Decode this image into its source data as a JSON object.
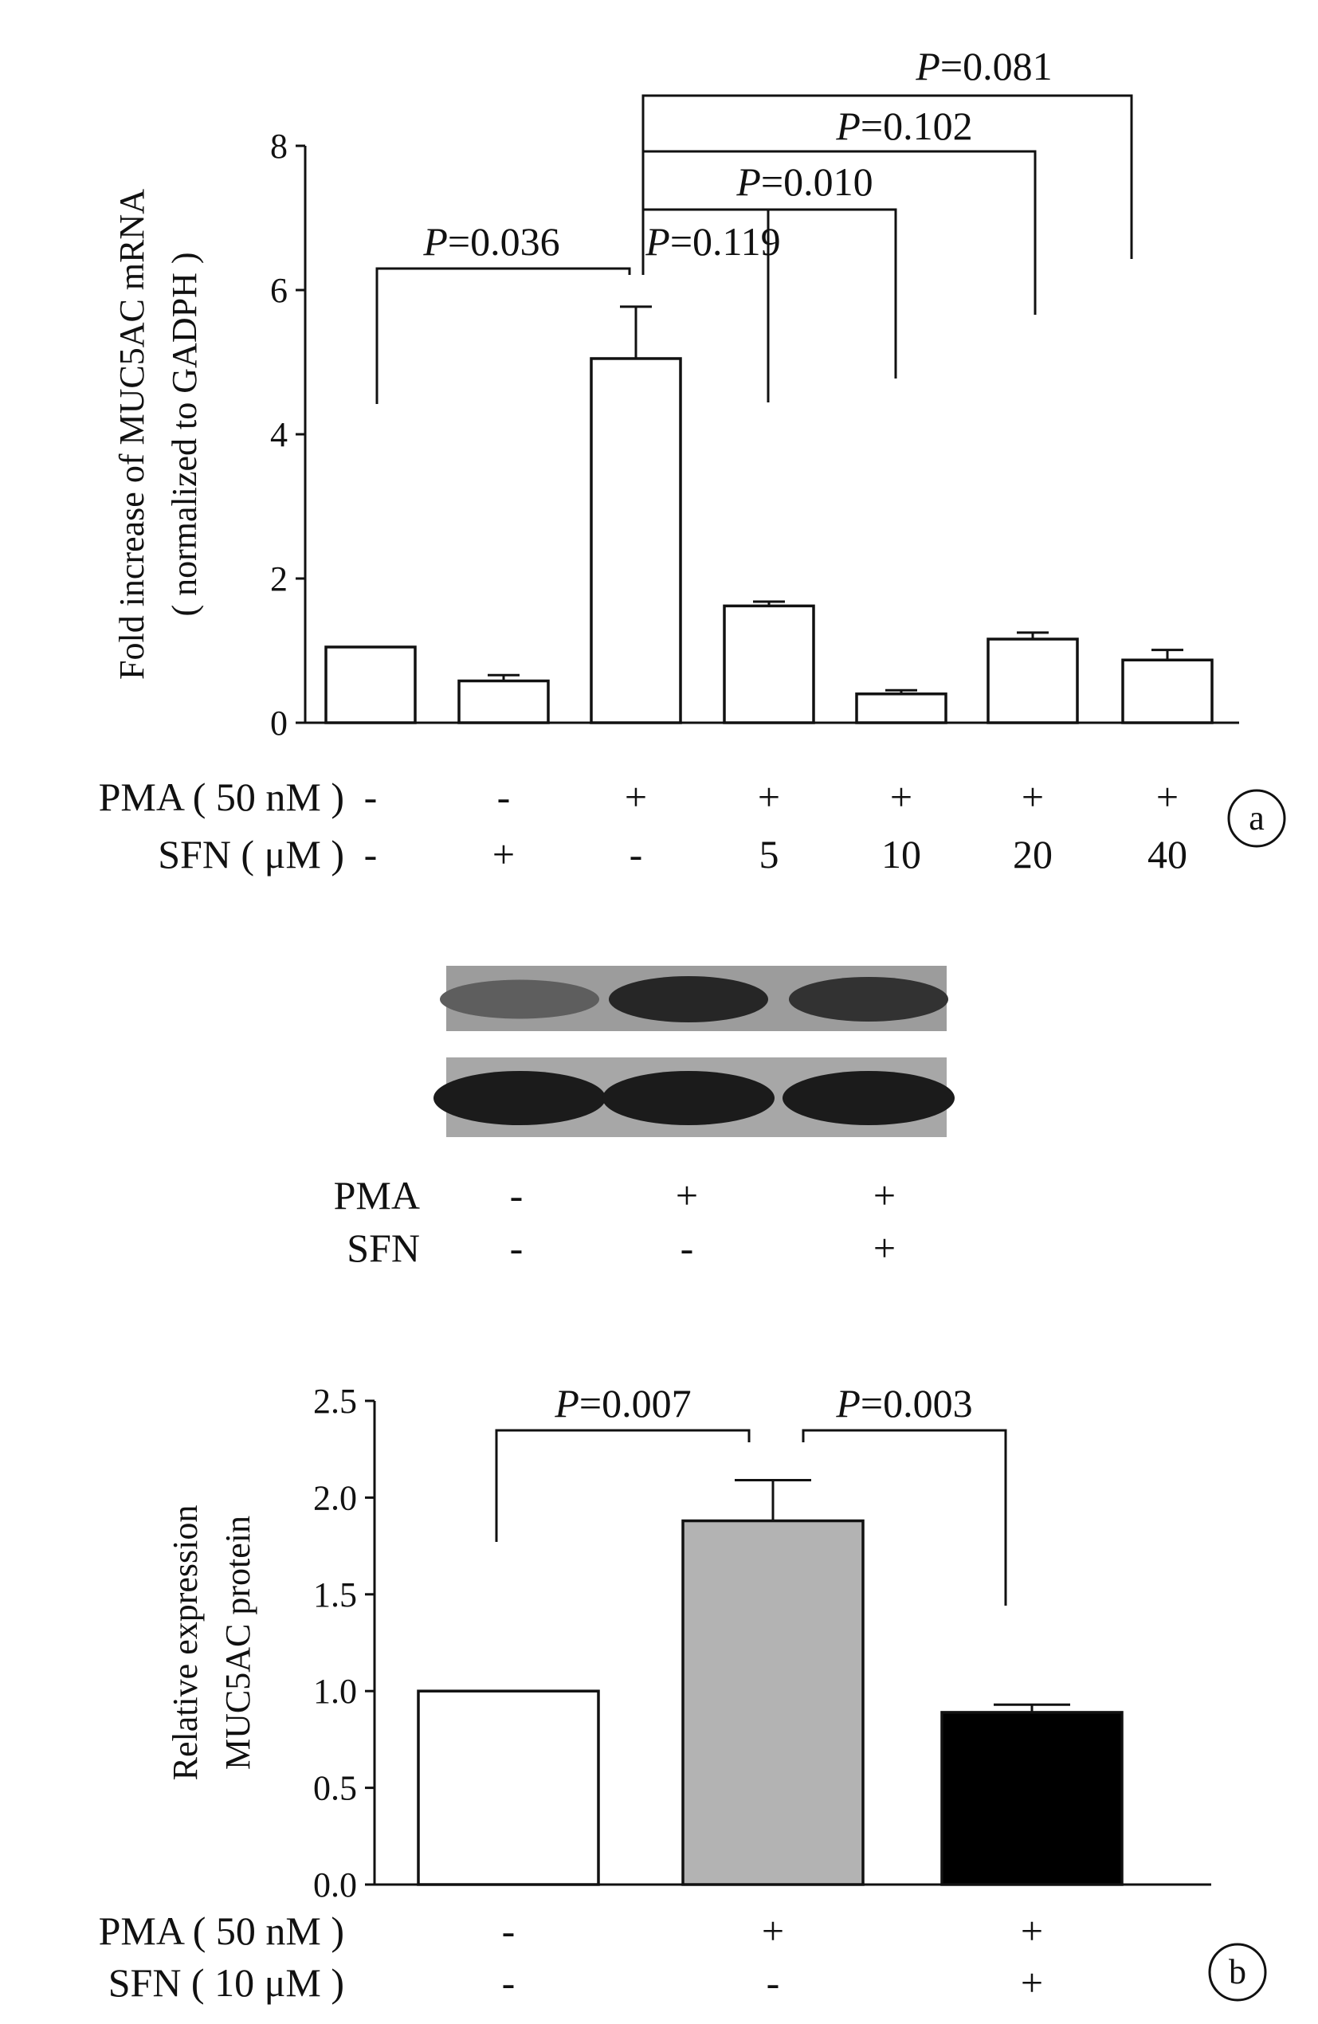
{
  "chart_data": [
    {
      "type": "bar",
      "panel": "a",
      "ylabel_line1": "Fold increase of MUC5AC mRNA",
      "ylabel_line2": "( normalized to GADPH )",
      "ylim": [
        0,
        8
      ],
      "yticks": [
        "0",
        "2",
        "4",
        "6",
        "8"
      ],
      "values": [
        1.05,
        0.58,
        5.05,
        1.62,
        0.4,
        1.16,
        0.87
      ],
      "errors": [
        0,
        0.08,
        0.72,
        0.06,
        0.05,
        0.09,
        0.14
      ],
      "bar_fills": [
        "#ffffff",
        "#ffffff",
        "#ffffff",
        "#ffffff",
        "#ffffff",
        "#ffffff",
        "#ffffff"
      ],
      "conditions": [
        {
          "label": "PMA ( 50 nM )",
          "values": [
            "-",
            "-",
            "+",
            "+",
            "+",
            "+",
            "+"
          ]
        },
        {
          "label": "SFN ( μM )",
          "values": [
            "-",
            "+",
            "-",
            "5",
            "10",
            "20",
            "40"
          ]
        }
      ],
      "comparisons": [
        {
          "from": 0,
          "to": 2,
          "p_italic": "P",
          "p_rest": "=0.036"
        },
        {
          "from": 2,
          "to": 3,
          "p_italic": "P",
          "p_rest": "=0.119"
        },
        {
          "from": 2,
          "to": 4,
          "p_italic": "P",
          "p_rest": "=0.010"
        },
        {
          "from": 2,
          "to": 5,
          "p_italic": "P",
          "p_rest": "=0.102"
        },
        {
          "from": 2,
          "to": 6,
          "p_italic": "P",
          "p_rest": "=0.081"
        }
      ]
    },
    {
      "type": "western-blot",
      "panel": "b",
      "band_intensity_top": [
        0.45,
        0.9,
        0.8
      ],
      "band_intensity_bottom": [
        0.95,
        0.95,
        0.95
      ],
      "conditions": [
        {
          "label": "PMA",
          "values": [
            "-",
            "+",
            "+"
          ]
        },
        {
          "label": "SFN",
          "values": [
            "-",
            "-",
            "+"
          ]
        }
      ]
    },
    {
      "type": "bar",
      "panel": "b",
      "ylabel_line1": "Relative expression",
      "ylabel_line2": "MUC5AC protein",
      "ylim": [
        0,
        2.5
      ],
      "yticks": [
        "0.0",
        "0.5",
        "1.0",
        "1.5",
        "2.0",
        "2.5"
      ],
      "values": [
        1.0,
        1.88,
        0.89
      ],
      "errors": [
        0,
        0.21,
        0.04
      ],
      "bar_fills": [
        "#ffffff",
        "#b3b3b3",
        "#000000"
      ],
      "conditions": [
        {
          "label": "PMA ( 50 nM )",
          "values": [
            "-",
            "+",
            "+"
          ]
        },
        {
          "label": "SFN ( 10 μM )",
          "values": [
            "-",
            "-",
            "+"
          ]
        }
      ],
      "comparisons": [
        {
          "from": 0,
          "to": 1,
          "p_italic": "P",
          "p_rest": "=0.007"
        },
        {
          "from": 1,
          "to": 2,
          "p_italic": "P",
          "p_rest": "=0.003"
        }
      ]
    }
  ],
  "panel_labels": [
    "a",
    "b"
  ]
}
